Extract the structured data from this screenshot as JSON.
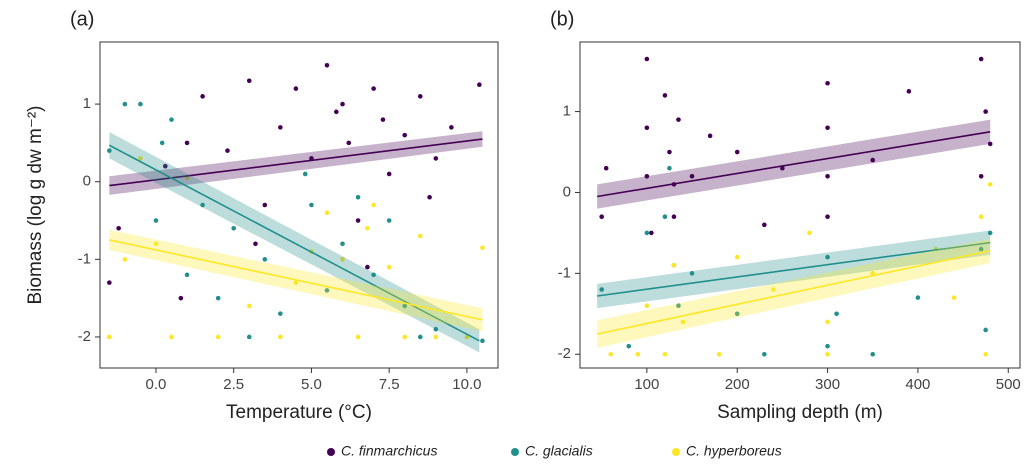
{
  "chart_data": [
    {
      "type": "scatter",
      "panel_label": "(a)",
      "x_label": "Temperature (°C)",
      "y_label": "Biomass  (log g dw m⁻²)",
      "xlim": [
        -1.8,
        11.0
      ],
      "ylim": [
        -2.4,
        1.8
      ],
      "xticks": [
        {
          "value": 0,
          "label": "0.0"
        },
        2.5,
        {
          "value": 5,
          "label": "5.0"
        },
        7.5,
        {
          "value": 10,
          "label": "10.0"
        }
      ],
      "yticks": [
        -2,
        -1,
        0,
        1
      ],
      "grid": false,
      "series": [
        {
          "name": "C. finmarchicus",
          "color": "#440154",
          "x": [
            -1.5,
            -1.2,
            0.3,
            1,
            1.5,
            2.3,
            3,
            3.5,
            4,
            4.5,
            5,
            5.5,
            6,
            6.2,
            6.5,
            7,
            7.3,
            7.5,
            8,
            8.5,
            9,
            9.5,
            10.4,
            3.2,
            5.8,
            8.8,
            0.8,
            6.8
          ],
          "y": [
            -1.3,
            -0.6,
            0.2,
            0.5,
            1.1,
            0.4,
            1.3,
            -0.3,
            0.7,
            1.2,
            0.3,
            1.5,
            1.0,
            0.5,
            -0.5,
            1.2,
            0.8,
            0.1,
            0.6,
            1.1,
            0.3,
            0.7,
            1.25,
            -0.8,
            0.9,
            -0.2,
            -1.5,
            -1.1
          ],
          "fit": {
            "x": [
              -1.5,
              10.5
            ],
            "y": [
              -0.05,
              0.55
            ],
            "lower": [
              -0.17,
              0.45
            ],
            "upper": [
              0.07,
              0.65
            ]
          }
        },
        {
          "name": "C. glacialis",
          "color": "#21908c",
          "x": [
            -1.5,
            -1,
            -0.5,
            0,
            0.5,
            1,
            1.5,
            2,
            2.5,
            3,
            3.5,
            4,
            5,
            5.5,
            6,
            6.5,
            7,
            7.5,
            8,
            8.5,
            9,
            10.5,
            4.8,
            0.2
          ],
          "y": [
            0.4,
            1.0,
            1.0,
            -0.5,
            0.8,
            -1.2,
            -0.3,
            -1.5,
            -0.6,
            -2,
            -1.0,
            -1.7,
            -0.3,
            -1.4,
            -0.8,
            -0.2,
            -1.2,
            -0.5,
            -1.6,
            -2,
            -1.9,
            -2.05,
            0.1,
            0.5
          ],
          "fit": {
            "x": [
              -1.5,
              10.4
            ],
            "y": [
              0.47,
              -2.05
            ],
            "lower": [
              0.3,
              -2.2
            ],
            "upper": [
              0.64,
              -1.9
            ]
          }
        },
        {
          "name": "C. hyperboreus",
          "color": "#fde725",
          "x": [
            -1.5,
            -1,
            -0.5,
            0,
            0.5,
            1,
            2,
            3,
            4,
            5,
            5.5,
            6,
            6.5,
            7,
            7.5,
            8,
            8.5,
            9,
            10,
            10.5,
            6.8,
            4.5
          ],
          "y": [
            -2,
            -1.0,
            0.3,
            -0.8,
            -2,
            0.05,
            -2,
            -1.6,
            -2,
            -0.9,
            -0.4,
            -1.0,
            -2,
            -0.3,
            -1.1,
            -2,
            -0.7,
            -2,
            -2,
            -0.85,
            -0.6,
            -1.3
          ],
          "fit": {
            "x": [
              -1.5,
              10.5
            ],
            "y": [
              -0.75,
              -1.78
            ],
            "lower": [
              -0.88,
              -1.93
            ],
            "upper": [
              -0.62,
              -1.63
            ]
          }
        }
      ]
    },
    {
      "type": "scatter",
      "panel_label": "(b)",
      "x_label": "Sampling depth (m)",
      "xlim": [
        26,
        513
      ],
      "ylim": [
        -2.17,
        1.86
      ],
      "xticks": [
        100,
        200,
        300,
        400,
        500
      ],
      "yticks": [
        -2,
        -1,
        0,
        1
      ],
      "grid": false,
      "series": [
        {
          "color": "#440154",
          "x": [
            50,
            55,
            100,
            100,
            100,
            105,
            120,
            125,
            130,
            130,
            135,
            150,
            170,
            200,
            230,
            250,
            300,
            300,
            300,
            300,
            350,
            390,
            470,
            475,
            480,
            470
          ],
          "y": [
            -0.3,
            0.3,
            1.65,
            0.8,
            0.2,
            -0.5,
            1.2,
            0.5,
            0.1,
            -0.3,
            0.9,
            0.2,
            0.7,
            0.5,
            -0.4,
            0.3,
            1.35,
            0.8,
            0.2,
            -0.3,
            0.4,
            1.25,
            1.65,
            1.0,
            0.6,
            0.2
          ],
          "fit": {
            "x": [
              45,
              480
            ],
            "y": [
              -0.05,
              0.75
            ],
            "lower": [
              -0.2,
              0.6
            ],
            "upper": [
              0.1,
              0.9
            ]
          }
        },
        {
          "color": "#21908c",
          "x": [
            50,
            100,
            120,
            125,
            130,
            135,
            150,
            200,
            230,
            300,
            300,
            310,
            350,
            400,
            470,
            475,
            480,
            80
          ],
          "y": [
            -1.2,
            -0.5,
            -0.3,
            0.3,
            -0.9,
            -1.4,
            -1.0,
            -1.5,
            -2,
            -0.8,
            -1.9,
            -1.5,
            -2,
            -1.3,
            -0.7,
            -1.7,
            -0.5,
            -1.9
          ],
          "fit": {
            "x": [
              45,
              480
            ],
            "y": [
              -1.28,
              -0.62
            ],
            "lower": [
              -1.43,
              -0.77
            ],
            "upper": [
              -1.13,
              -0.47
            ]
          }
        },
        {
          "color": "#fde725",
          "x": [
            60,
            90,
            100,
            120,
            130,
            140,
            180,
            200,
            240,
            280,
            300,
            300,
            350,
            420,
            470,
            475,
            480,
            440
          ],
          "y": [
            -2,
            -2,
            -1.4,
            -2,
            -0.9,
            -1.6,
            -2,
            -0.8,
            -1.2,
            -0.5,
            -1.6,
            -2,
            -1.0,
            -0.7,
            -0.3,
            -2,
            0.1,
            -1.3
          ],
          "fit": {
            "x": [
              45,
              480
            ],
            "y": [
              -1.75,
              -0.72
            ],
            "lower": [
              -1.92,
              -0.87
            ],
            "upper": [
              -1.58,
              -0.57
            ]
          }
        }
      ]
    }
  ]
}
